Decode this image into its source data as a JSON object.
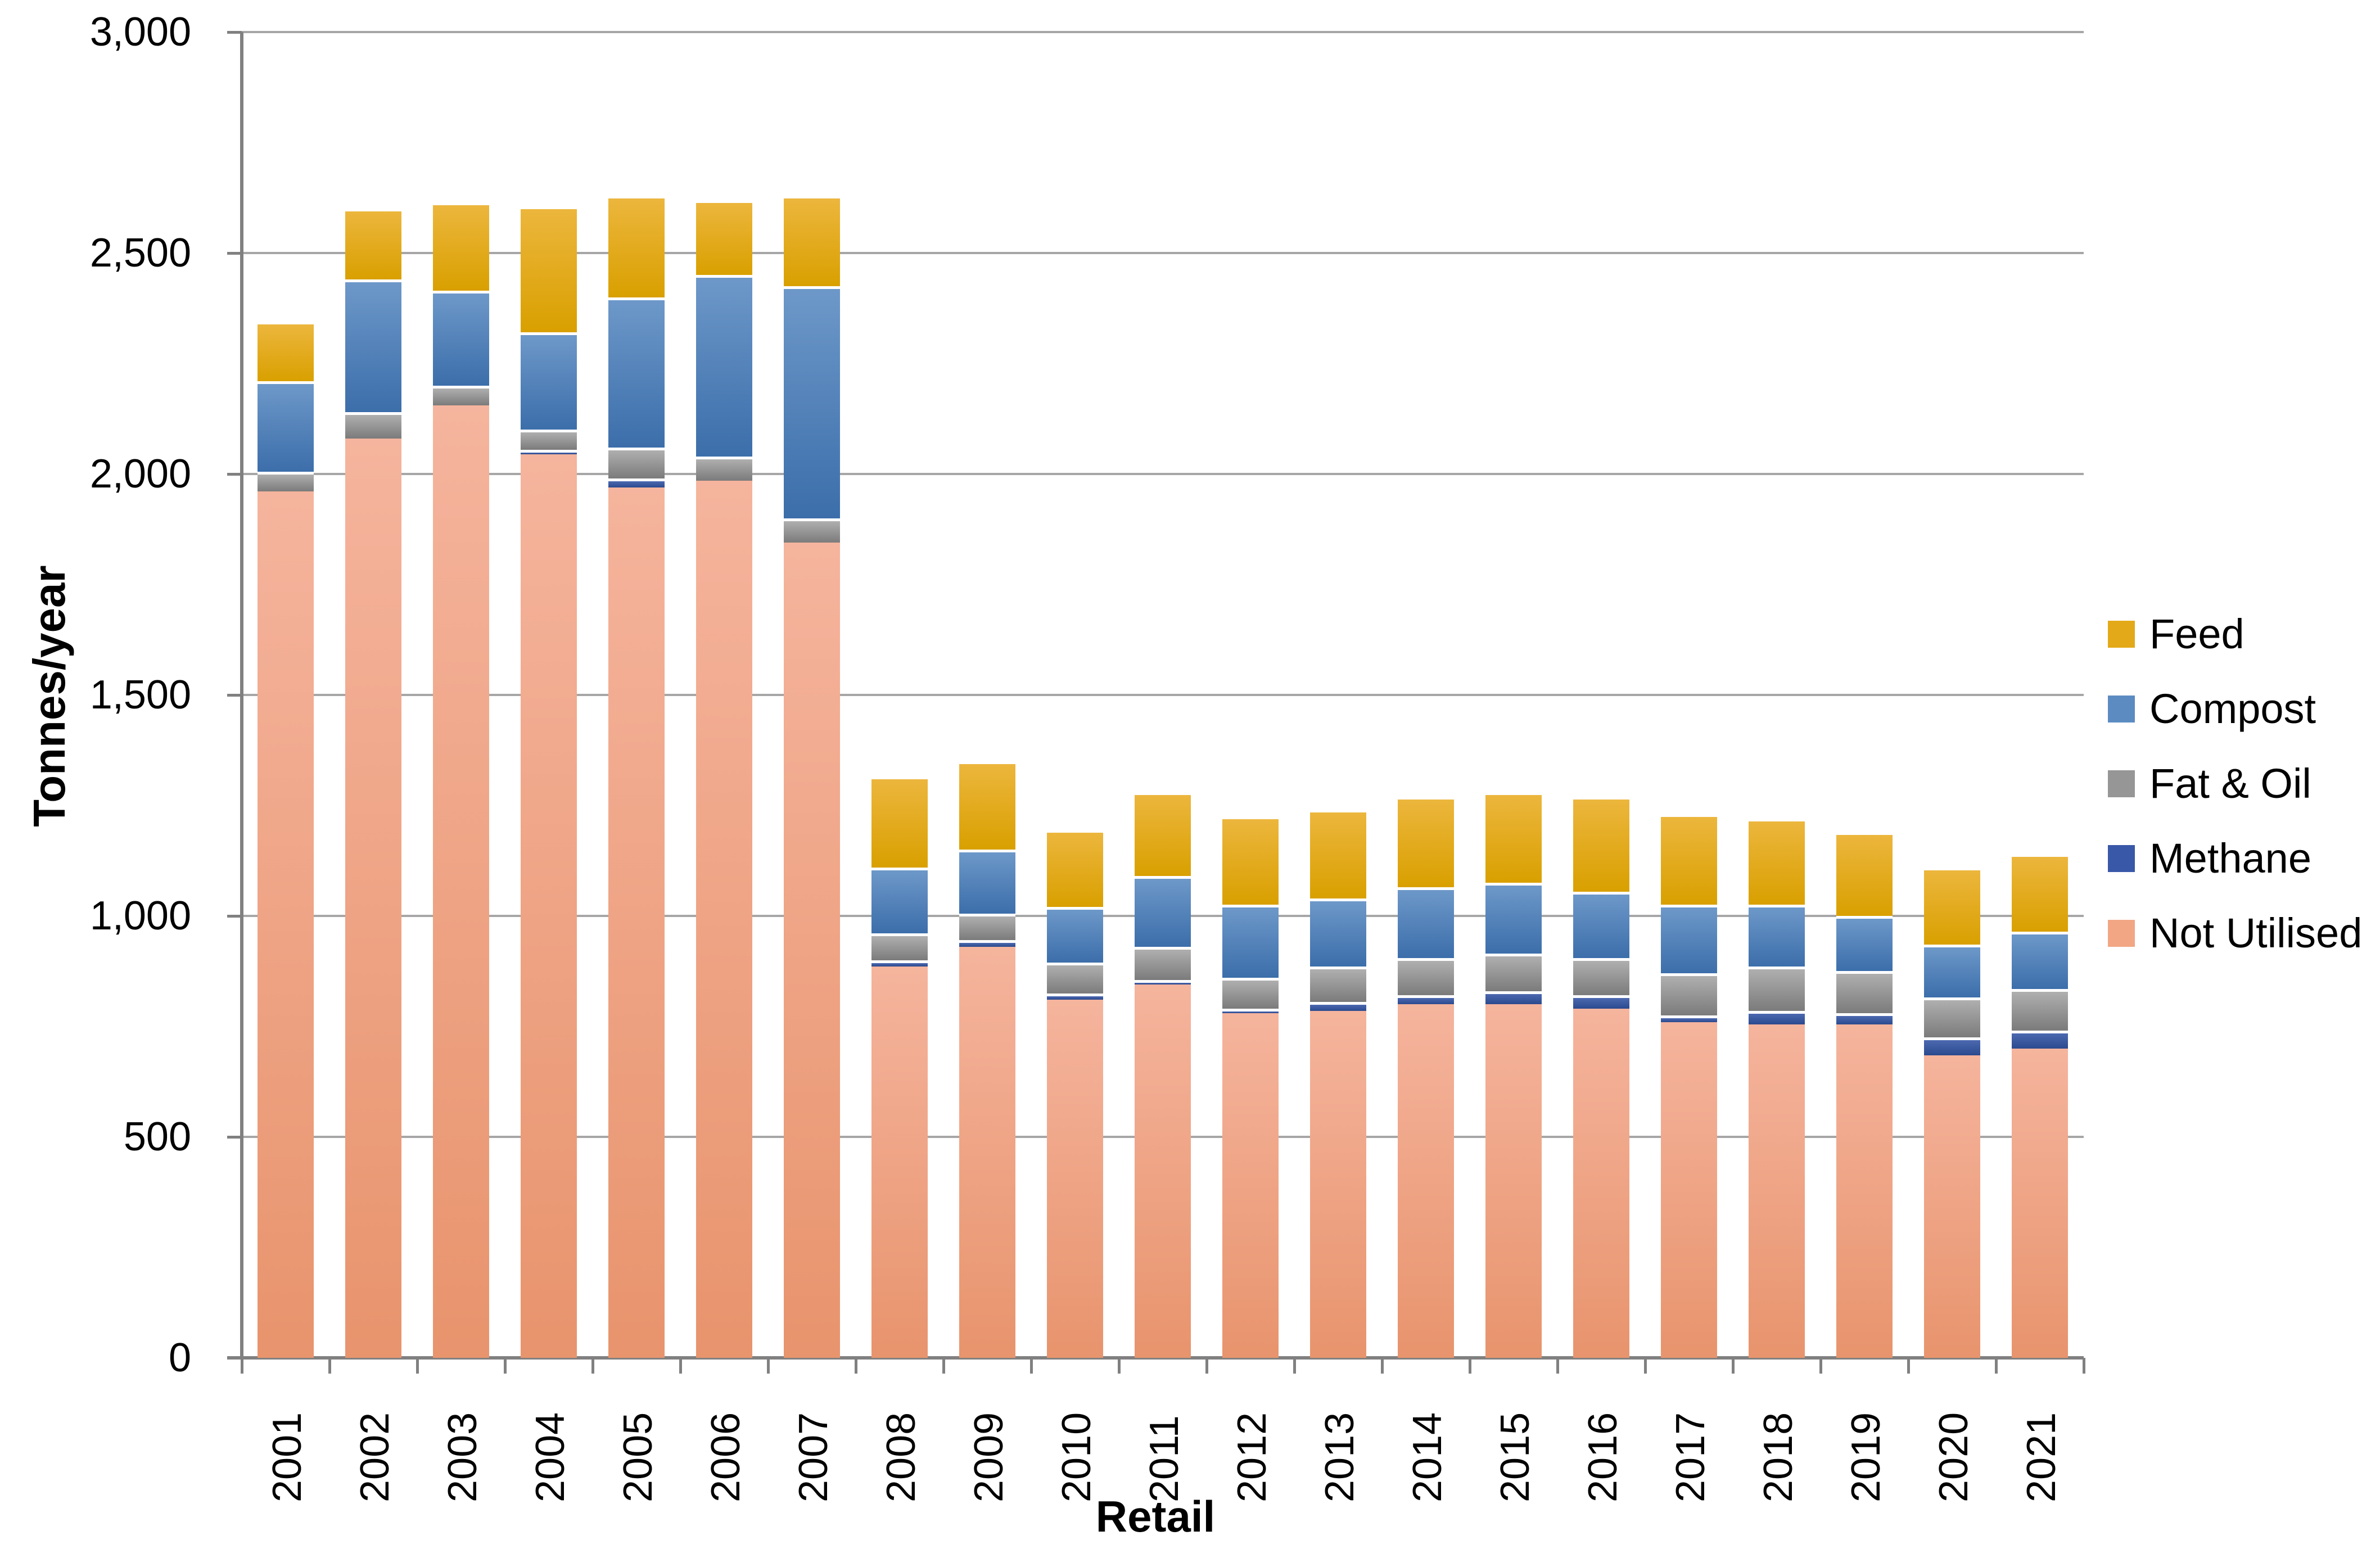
{
  "chart_data": {
    "type": "bar",
    "stacked": true,
    "title": "",
    "xlabel": "Retail",
    "ylabel": "Tonnes/year",
    "ylim": [
      0,
      3000
    ],
    "ytick_step": 500,
    "ytick_labels": [
      "0",
      "500",
      "1,000",
      "1,500",
      "2,000",
      "2,500",
      "3,000"
    ],
    "grid": true,
    "legend_position": "right",
    "legend_order": [
      "Feed",
      "Compost",
      "Fat & Oil",
      "Methane",
      "Not Utilised"
    ],
    "categories": [
      "2001",
      "2002",
      "2003",
      "2004",
      "2005",
      "2006",
      "2007",
      "2008",
      "2009",
      "2010",
      "2011",
      "2012",
      "2013",
      "2014",
      "2015",
      "2016",
      "2017",
      "2018",
      "2019",
      "2020",
      "2021"
    ],
    "series": [
      {
        "name": "Not Utilised",
        "swatch": "#F2A684",
        "gradient_top": "#F5B49D",
        "gradient_bottom": "#E8946D",
        "values": [
          1960,
          2080,
          2155,
          2045,
          1970,
          1985,
          1845,
          885,
          930,
          810,
          845,
          780,
          785,
          800,
          800,
          790,
          760,
          755,
          755,
          685,
          700
        ]
      },
      {
        "name": "Methane",
        "swatch": "#3A58A8",
        "gradient_top": "#4C69B0",
        "gradient_bottom": "#2B4A8E",
        "values": [
          0,
          0,
          0,
          10,
          20,
          0,
          0,
          15,
          15,
          15,
          10,
          10,
          20,
          20,
          30,
          30,
          15,
          30,
          25,
          40,
          40
        ]
      },
      {
        "name": "Fat & Oil",
        "swatch": "#969696",
        "gradient_top": "#AFAFAF",
        "gradient_bottom": "#7B7B7B",
        "values": [
          45,
          60,
          45,
          45,
          70,
          55,
          55,
          60,
          60,
          70,
          75,
          70,
          80,
          85,
          85,
          85,
          95,
          100,
          95,
          90,
          95
        ]
      },
      {
        "name": "Compost",
        "swatch": "#5C8BC2",
        "gradient_top": "#6D98C9",
        "gradient_bottom": "#3C6EAA",
        "values": [
          205,
          300,
          215,
          220,
          340,
          410,
          525,
          150,
          145,
          125,
          160,
          165,
          155,
          160,
          160,
          150,
          155,
          140,
          125,
          120,
          130
        ]
      },
      {
        "name": "Feed",
        "swatch": "#E3A918",
        "gradient_top": "#ECB63D",
        "gradient_bottom": "#D9A000",
        "values": [
          135,
          160,
          200,
          285,
          230,
          170,
          205,
          205,
          200,
          175,
          190,
          200,
          200,
          205,
          205,
          215,
          205,
          195,
          190,
          175,
          175
        ]
      }
    ],
    "colors": {
      "gridline": "#a6a6a6",
      "axis": "#808080",
      "text": "#000000",
      "background": "#ffffff"
    }
  }
}
